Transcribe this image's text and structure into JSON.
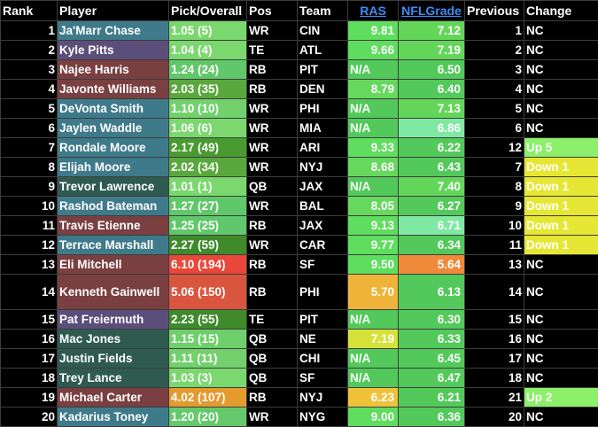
{
  "headers": {
    "rank": "Rank",
    "player": "Player",
    "pick": "Pick/Overall",
    "pos": "Pos",
    "team": "Team",
    "ras": "RAS",
    "nflgrade": "NFLGrade",
    "previous": "Previous",
    "change": "Change"
  },
  "rows": [
    {
      "rank": "1",
      "player": "Ja'Marr Chase",
      "pick": "1.05 (5)",
      "pos": "WR",
      "team": "CIN",
      "ras": "9.81",
      "grade": "7.12",
      "prev": "1",
      "change": "NC",
      "player_color": "#3f7a8a",
      "pick_color": "#7ad86e",
      "ras_color": "#5fdd5f",
      "grade_color": "#63d65a",
      "change_type": "nc"
    },
    {
      "rank": "2",
      "player": "Kyle Pitts",
      "pick": "1.04 (4)",
      "pos": "TE",
      "team": "ATL",
      "ras": "9.66",
      "grade": "7.19",
      "prev": "2",
      "change": "NC",
      "player_color": "#5b4e7a",
      "pick_color": "#7ad86e",
      "ras_color": "#5fdd5f",
      "grade_color": "#63d65a",
      "change_type": "nc"
    },
    {
      "rank": "3",
      "player": "Najee Harris",
      "pick": "1.24 (24)",
      "pos": "RB",
      "team": "PIT",
      "ras": "N/A",
      "grade": "6.50",
      "prev": "3",
      "change": "NC",
      "player_color": "#7a3f40",
      "pick_color": "#60c86a",
      "ras_color": "#52c95a",
      "grade_color": "#52c95a",
      "change_type": "nc"
    },
    {
      "rank": "4",
      "player": "Javonte Williams",
      "pick": "2.03 (35)",
      "pos": "RB",
      "team": "DEN",
      "ras": "8.79",
      "grade": "6.40",
      "prev": "4",
      "change": "NC",
      "player_color": "#7a3f40",
      "pick_color": "#5aa83d",
      "ras_color": "#66d85e",
      "grade_color": "#52c95a",
      "change_type": "nc"
    },
    {
      "rank": "5",
      "player": "DeVonta Smith",
      "pick": "1.10 (10)",
      "pos": "WR",
      "team": "PHI",
      "ras": "N/A",
      "grade": "7.13",
      "prev": "5",
      "change": "NC",
      "player_color": "#3f7a8a",
      "pick_color": "#72d16c",
      "ras_color": "#52c95a",
      "grade_color": "#63d65a",
      "change_type": "nc"
    },
    {
      "rank": "6",
      "player": "Jaylen Waddle",
      "pick": "1.06 (6)",
      "pos": "WR",
      "team": "MIA",
      "ras": "N/A",
      "grade": "6.86",
      "prev": "6",
      "change": "NC",
      "player_color": "#3f7a8a",
      "pick_color": "#7ad86e",
      "ras_color": "#52c95a",
      "grade_color": "#7fe8a2",
      "change_type": "nc"
    },
    {
      "rank": "7",
      "player": "Rondale Moore",
      "pick": "2.17 (49)",
      "pos": "WR",
      "team": "ARI",
      "ras": "9.33",
      "grade": "6.22",
      "prev": "12",
      "change": "Up 5",
      "player_color": "#3f7a8a",
      "pick_color": "#4a9a32",
      "ras_color": "#5fdd5f",
      "grade_color": "#52c95a",
      "change_type": "up"
    },
    {
      "rank": "8",
      "player": "Elijah Moore",
      "pick": "2.02 (34)",
      "pos": "WR",
      "team": "NYJ",
      "ras": "8.68",
      "grade": "6.43",
      "prev": "7",
      "change": "Down 1",
      "player_color": "#3f7a8a",
      "pick_color": "#5aa83d",
      "ras_color": "#66d85e",
      "grade_color": "#52c95a",
      "change_type": "down"
    },
    {
      "rank": "9",
      "player": "Trevor Lawrence",
      "pick": "1.01 (1)",
      "pos": "QB",
      "team": "JAX",
      "ras": "N/A",
      "grade": "7.40",
      "prev": "8",
      "change": "Down 1",
      "player_color": "#2f5a50",
      "pick_color": "#7ad86e",
      "ras_color": "#52c95a",
      "grade_color": "#63d65a",
      "change_type": "down"
    },
    {
      "rank": "10",
      "player": "Rashod Bateman",
      "pick": "1.27 (27)",
      "pos": "WR",
      "team": "BAL",
      "ras": "8.05",
      "grade": "6.27",
      "prev": "9",
      "change": "Down 1",
      "player_color": "#3f7a8a",
      "pick_color": "#60c86a",
      "ras_color": "#66d85e",
      "grade_color": "#52c95a",
      "change_type": "down"
    },
    {
      "rank": "11",
      "player": "Travis Etienne",
      "pick": "1.25 (25)",
      "pos": "RB",
      "team": "JAX",
      "ras": "9.13",
      "grade": "6.71",
      "prev": "10",
      "change": "Down 1",
      "player_color": "#7a3f40",
      "pick_color": "#60c86a",
      "ras_color": "#5fdd5f",
      "grade_color": "#7fe8a2",
      "change_type": "down"
    },
    {
      "rank": "12",
      "player": "Terrace Marshall",
      "pick": "2.27 (59)",
      "pos": "WR",
      "team": "CAR",
      "ras": "9.77",
      "grade": "6.34",
      "prev": "11",
      "change": "Down 1",
      "player_color": "#3f7a8a",
      "pick_color": "#3f8a2a",
      "ras_color": "#5fdd5f",
      "grade_color": "#52c95a",
      "change_type": "down"
    },
    {
      "rank": "13",
      "player": "Eli Mitchell",
      "pick": "6.10 (194)",
      "pos": "RB",
      "team": "SF",
      "ras": "9.50",
      "grade": "5.64",
      "prev": "13",
      "change": "NC",
      "player_color": "#7a3f40",
      "pick_color": "#e8473a",
      "ras_color": "#5fdd5f",
      "grade_color": "#ef8a3a",
      "change_type": "nc"
    },
    {
      "rank": "14",
      "player": "Kenneth Gainwell",
      "pick": "5.06 (150)",
      "pos": "RB",
      "team": "PHI",
      "ras": "5.70",
      "grade": "6.13",
      "prev": "14",
      "change": "NC",
      "player_color": "#7a3f40",
      "pick_color": "#d9553e",
      "ras_color": "#f0b33a",
      "grade_color": "#52c95a",
      "change_type": "nc",
      "tall": true
    },
    {
      "rank": "15",
      "player": "Pat Freiermuth",
      "pick": "2.23 (55)",
      "pos": "TE",
      "team": "PIT",
      "ras": "N/A",
      "grade": "6.30",
      "prev": "15",
      "change": "NC",
      "player_color": "#5b4e7a",
      "pick_color": "#3f8a2a",
      "ras_color": "#52c95a",
      "grade_color": "#52c95a",
      "change_type": "nc"
    },
    {
      "rank": "16",
      "player": "Mac Jones",
      "pick": "1.15 (15)",
      "pos": "QB",
      "team": "NE",
      "ras": "7.19",
      "grade": "6.33",
      "prev": "16",
      "change": "NC",
      "player_color": "#2f5a50",
      "pick_color": "#6fcf6c",
      "ras_color": "#d6e23a",
      "grade_color": "#52c95a",
      "change_type": "nc"
    },
    {
      "rank": "17",
      "player": "Justin Fields",
      "pick": "1.11 (11)",
      "pos": "QB",
      "team": "CHI",
      "ras": "N/A",
      "grade": "6.45",
      "prev": "17",
      "change": "NC",
      "player_color": "#2f5a50",
      "pick_color": "#72d16c",
      "ras_color": "#52c95a",
      "grade_color": "#52c95a",
      "change_type": "nc"
    },
    {
      "rank": "18",
      "player": "Trey Lance",
      "pick": "1.03 (3)",
      "pos": "QB",
      "team": "SF",
      "ras": "N/A",
      "grade": "6.47",
      "prev": "18",
      "change": "NC",
      "player_color": "#2f5a50",
      "pick_color": "#7ad86e",
      "ras_color": "#52c95a",
      "grade_color": "#52c95a",
      "change_type": "nc"
    },
    {
      "rank": "19",
      "player": "Michael Carter",
      "pick": "4.02 (107)",
      "pos": "RB",
      "team": "NYJ",
      "ras": "6.23",
      "grade": "6.21",
      "prev": "21",
      "change": "Up 2",
      "player_color": "#7a3f40",
      "pick_color": "#e59a2e",
      "ras_color": "#f0c23a",
      "grade_color": "#52c95a",
      "change_type": "up"
    },
    {
      "rank": "20",
      "player": "Kadarius Toney",
      "pick": "1.20 (20)",
      "pos": "WR",
      "team": "NYG",
      "ras": "9.00",
      "grade": "6.36",
      "prev": "20",
      "change": "NC",
      "player_color": "#3f7a8a",
      "pick_color": "#65c96b",
      "ras_color": "#5fdd5f",
      "grade_color": "#52c95a",
      "change_type": "nc"
    }
  ]
}
